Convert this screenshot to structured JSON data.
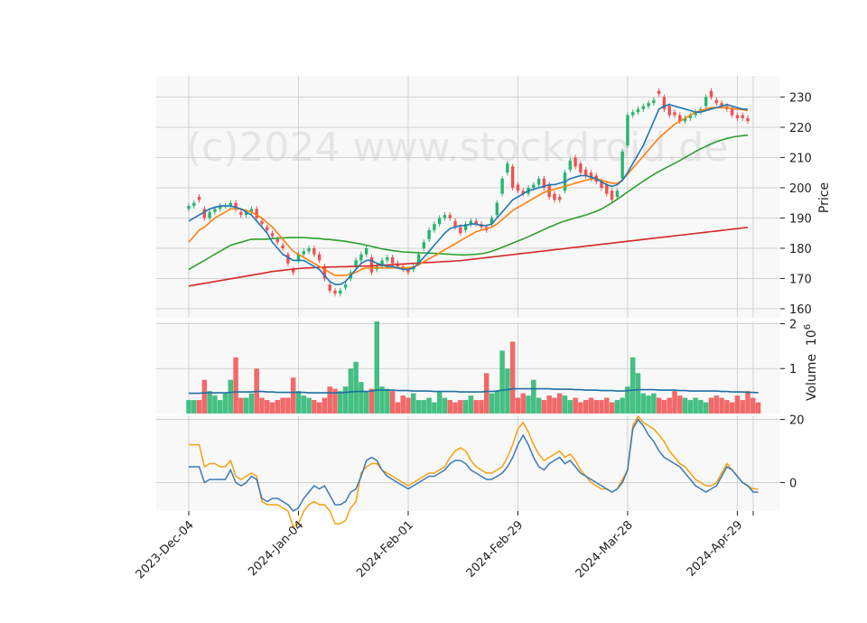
{
  "watermark": "(c)2024 www.stockdroid.de",
  "colors": {
    "up": "#26b56e",
    "down": "#f05050",
    "ma_short": "#1f77b4",
    "ma_mid": "#ff7f0e",
    "ma_long": "#2ca02c",
    "ma_200": "#d62728",
    "volume_avg": "#1f6fa4",
    "osc_fast": "#3a7ab8",
    "osc_slow": "#f5a10e"
  },
  "chart_data": {
    "type": "candlestick",
    "x_tick_labels": [
      "2023-Dec-04",
      "2024-Jan-04",
      "2024-Feb-01",
      "2024-Feb-29",
      "2024-Mar-28",
      "2024-Apr-29"
    ],
    "x_tick_index": [
      0,
      21,
      42,
      63,
      84,
      105
    ],
    "price": {
      "ylabel": "Price",
      "ylim": [
        157,
        237
      ],
      "yticks": [
        160,
        170,
        180,
        190,
        200,
        210,
        220,
        230
      ],
      "close": [
        194,
        195,
        196,
        190,
        192,
        193,
        194,
        194,
        195,
        193,
        191,
        192,
        193,
        190,
        188,
        186,
        184,
        182,
        180,
        175,
        172,
        178,
        179,
        180,
        178,
        176,
        170,
        166,
        165,
        166,
        168,
        172,
        176,
        178,
        180,
        172,
        174,
        176,
        177,
        175,
        174,
        173,
        172,
        174,
        178,
        182,
        186,
        188,
        190,
        191,
        190,
        187,
        185,
        188,
        189,
        188,
        187,
        186,
        190,
        195,
        203,
        208,
        200,
        199,
        198,
        200,
        201,
        203,
        200,
        197,
        196,
        196,
        205,
        209,
        207,
        205,
        204,
        203,
        202,
        200,
        198,
        196,
        199,
        212,
        224,
        225,
        226,
        227,
        228,
        229,
        231,
        226,
        224,
        224,
        222,
        223,
        224,
        225,
        226,
        230,
        230,
        228,
        227,
        226,
        224,
        223,
        223,
        222
      ],
      "open": [
        193,
        194,
        197,
        193,
        190,
        192,
        193,
        194,
        194,
        195,
        192,
        191,
        192,
        193,
        189,
        187,
        185,
        183,
        181,
        178,
        173,
        176,
        178,
        179,
        180,
        178,
        174,
        168,
        166,
        165,
        167,
        170,
        174,
        176,
        178,
        177,
        173,
        174,
        176,
        177,
        175,
        174,
        173,
        173,
        175,
        180,
        183,
        186,
        188,
        190,
        191,
        189,
        187,
        186,
        188,
        189,
        188,
        187,
        188,
        191,
        198,
        205,
        207,
        201,
        199,
        198,
        200,
        201,
        203,
        201,
        198,
        197,
        199,
        206,
        210,
        208,
        206,
        205,
        204,
        202,
        201,
        199,
        197,
        203,
        214,
        224,
        225,
        226,
        227,
        228,
        232,
        230,
        227,
        225,
        224,
        222,
        223,
        224,
        225,
        227,
        232,
        229,
        228,
        227,
        226,
        224,
        224,
        223
      ],
      "ma_short": [
        189,
        190,
        191,
        192,
        193,
        193.5,
        194,
        194,
        194,
        193.5,
        193,
        192,
        191,
        189,
        187,
        185,
        182,
        180,
        178,
        177,
        176,
        176,
        176,
        175,
        174,
        173,
        171,
        169,
        168,
        168,
        169,
        171,
        173,
        175,
        176,
        176,
        175,
        174.5,
        174,
        174,
        173.5,
        173,
        173,
        173.5,
        175,
        177,
        179,
        181,
        183,
        185,
        186.5,
        187,
        187.5,
        187.5,
        188,
        188,
        187.5,
        187.5,
        188,
        190,
        192,
        194,
        196,
        197,
        198,
        199,
        199.5,
        200,
        200.5,
        201,
        201,
        201.5,
        202,
        203,
        203.5,
        204,
        204,
        203.5,
        203,
        202,
        201,
        200.5,
        201,
        202.5,
        205,
        208,
        211,
        214,
        218,
        222,
        226,
        227,
        227.5,
        227,
        226.5,
        226,
        225.5,
        225,
        225,
        225.5,
        226,
        226.5,
        227,
        227.5,
        227,
        226.5,
        226,
        226
      ],
      "ma_mid": [
        182,
        184,
        186,
        187,
        188.5,
        190,
        191,
        192,
        193,
        193,
        193,
        192.5,
        192,
        191,
        190,
        188.5,
        187,
        185,
        183,
        181,
        179,
        178,
        177,
        176,
        175,
        174,
        173,
        172,
        171,
        171,
        171,
        171.5,
        172,
        173,
        173.5,
        173.5,
        173.5,
        173.5,
        173.5,
        173.5,
        173.5,
        173.5,
        173.5,
        173.8,
        174.5,
        175.5,
        176.5,
        177.5,
        178.5,
        179.5,
        180.5,
        181.5,
        182.5,
        183.5,
        184.5,
        185.5,
        186,
        186.5,
        187,
        188,
        189.5,
        191,
        192.5,
        193.5,
        194.5,
        195.5,
        196.5,
        197.5,
        198.5,
        199,
        199.5,
        200,
        200.5,
        201,
        201.5,
        202,
        202.5,
        203,
        203,
        202.5,
        202,
        201.5,
        201.5,
        202.5,
        204.5,
        206.5,
        208.5,
        210.5,
        212.5,
        214.5,
        216.5,
        218,
        219.5,
        221,
        222,
        223,
        224,
        225,
        225.5,
        226,
        226.5,
        226.5,
        226.5,
        226.5,
        226.2,
        226,
        225.8,
        225.5
      ],
      "ma_long": [
        173,
        174,
        175,
        176,
        177,
        178,
        179,
        180,
        181,
        181.5,
        182,
        182.5,
        183,
        183,
        183,
        183,
        183.2,
        183.3,
        183.4,
        183.5,
        183.5,
        183.5,
        183.5,
        183.4,
        183.3,
        183.2,
        183,
        182.9,
        182.7,
        182.5,
        182.3,
        182,
        181.7,
        181.4,
        181,
        180.6,
        180.2,
        179.8,
        179.5,
        179.2,
        179,
        178.8,
        178.7,
        178.6,
        178.5,
        178.5,
        178.4,
        178.3,
        178.2,
        178.1,
        178,
        177.9,
        177.8,
        177.8,
        177.9,
        178,
        178.2,
        178.5,
        179,
        179.6,
        180.3,
        181,
        181.7,
        182.4,
        183.1,
        183.8,
        184.6,
        185.4,
        186.2,
        187,
        187.7,
        188.4,
        189,
        189.5,
        190,
        190.5,
        191,
        191.6,
        192.2,
        193,
        194,
        195,
        196.2,
        197.4,
        198.6,
        199.8,
        201,
        202.2,
        203.3,
        204.4,
        205.4,
        206.3,
        207.2,
        208.1,
        209,
        210,
        211,
        212,
        212.9,
        213.7,
        214.5,
        215.2,
        215.8,
        216.3,
        216.7,
        217,
        217.2,
        217.4
      ],
      "ma_200": [
        167.5,
        167.8,
        168.1,
        168.4,
        168.7,
        169,
        169.3,
        169.6,
        169.9,
        170.2,
        170.5,
        170.8,
        171.1,
        171.4,
        171.7,
        172,
        172.3,
        172.5,
        172.7,
        172.9,
        173.1,
        173.3,
        173.4,
        173.5,
        173.6,
        173.7,
        173.7,
        173.8,
        173.8,
        173.9,
        173.9,
        174,
        174,
        174.1,
        174.1,
        174.2,
        174.3,
        174.4,
        174.5,
        174.6,
        174.7,
        174.8,
        174.9,
        175,
        175.1,
        175.2,
        175.3,
        175.4,
        175.5,
        175.6,
        175.7,
        175.8,
        175.9,
        176.1,
        176.3,
        176.5,
        176.7,
        176.9,
        177.1,
        177.3,
        177.5,
        177.7,
        177.9,
        178.1,
        178.3,
        178.5,
        178.7,
        178.9,
        179.1,
        179.3,
        179.5,
        179.7,
        179.9,
        180.1,
        180.3,
        180.5,
        180.7,
        180.9,
        181.1,
        181.3,
        181.5,
        181.7,
        181.9,
        182.1,
        182.3,
        182.5,
        182.7,
        182.9,
        183.1,
        183.3,
        183.5,
        183.7,
        183.9,
        184.1,
        184.3,
        184.5,
        184.7,
        184.9,
        185.1,
        185.3,
        185.5,
        185.7,
        185.9,
        186.1,
        186.3,
        186.5,
        186.7,
        186.9
      ]
    },
    "volume": {
      "ylabel": "Volume",
      "unit_label": "10^6",
      "ylim": [
        0,
        2.05
      ],
      "yticks": [
        1,
        2
      ],
      "values": [
        0.3,
        0.3,
        0.3,
        0.75,
        0.5,
        0.4,
        0.3,
        0.45,
        0.75,
        1.25,
        0.35,
        0.35,
        0.45,
        1.0,
        0.35,
        0.3,
        0.25,
        0.3,
        0.35,
        0.35,
        0.8,
        0.5,
        0.4,
        0.35,
        0.3,
        0.25,
        0.35,
        0.6,
        0.55,
        0.5,
        0.6,
        1.0,
        1.15,
        0.7,
        0.5,
        0.55,
        2.05,
        0.6,
        0.55,
        0.5,
        0.25,
        0.4,
        0.35,
        0.45,
        0.3,
        0.3,
        0.35,
        0.25,
        0.5,
        0.35,
        0.3,
        0.25,
        0.3,
        0.3,
        0.4,
        0.3,
        0.3,
        0.9,
        0.45,
        0.5,
        1.4,
        1.0,
        1.6,
        0.35,
        0.45,
        0.4,
        0.75,
        0.35,
        0.3,
        0.4,
        0.35,
        0.45,
        0.4,
        0.3,
        0.35,
        0.25,
        0.3,
        0.35,
        0.3,
        0.3,
        0.35,
        0.25,
        0.3,
        0.35,
        0.6,
        1.25,
        0.9,
        0.45,
        0.4,
        0.45,
        0.35,
        0.3,
        0.35,
        0.5,
        0.4,
        0.35,
        0.3,
        0.35,
        0.3,
        0.25,
        0.35,
        0.4,
        0.35,
        0.3,
        0.25,
        0.4,
        0.3,
        0.5,
        0.35,
        0.25
      ],
      "avg": [
        0.45,
        0.45,
        0.45,
        0.46,
        0.46,
        0.46,
        0.46,
        0.46,
        0.47,
        0.48,
        0.48,
        0.48,
        0.48,
        0.49,
        0.49,
        0.48,
        0.48,
        0.47,
        0.47,
        0.47,
        0.47,
        0.47,
        0.47,
        0.46,
        0.46,
        0.46,
        0.46,
        0.46,
        0.46,
        0.46,
        0.47,
        0.48,
        0.49,
        0.49,
        0.49,
        0.5,
        0.52,
        0.52,
        0.52,
        0.52,
        0.51,
        0.51,
        0.51,
        0.5,
        0.5,
        0.5,
        0.5,
        0.49,
        0.49,
        0.49,
        0.49,
        0.49,
        0.48,
        0.48,
        0.48,
        0.48,
        0.48,
        0.49,
        0.49,
        0.5,
        0.52,
        0.53,
        0.55,
        0.55,
        0.55,
        0.55,
        0.55,
        0.55,
        0.55,
        0.55,
        0.54,
        0.54,
        0.54,
        0.54,
        0.53,
        0.53,
        0.52,
        0.52,
        0.52,
        0.51,
        0.51,
        0.51,
        0.5,
        0.5,
        0.51,
        0.52,
        0.53,
        0.53,
        0.53,
        0.53,
        0.52,
        0.52,
        0.52,
        0.52,
        0.51,
        0.51,
        0.5,
        0.5,
        0.5,
        0.5,
        0.5,
        0.5,
        0.49,
        0.49,
        0.48,
        0.48,
        0.48,
        0.47,
        0.47,
        0.46
      ]
    },
    "oscillator": {
      "ylim": [
        -9,
        21
      ],
      "yticks": [
        0,
        20
      ],
      "fast": [
        5,
        5,
        5,
        0,
        1,
        1,
        1,
        1,
        4,
        0,
        -1,
        0,
        2,
        1,
        -5,
        -6,
        -5,
        -5,
        -6,
        -7,
        -9,
        -8,
        -5,
        -3,
        -1,
        -2,
        -1,
        -4,
        -7,
        -7,
        -6,
        -3,
        -2,
        2,
        7,
        8,
        7,
        4,
        2,
        1,
        0,
        -1,
        -2,
        -1,
        0,
        1,
        2,
        2,
        3,
        4,
        6,
        7,
        7,
        6,
        4,
        3,
        2,
        1,
        1,
        2,
        3,
        5,
        8,
        12,
        15,
        12,
        8,
        5,
        4,
        6,
        7,
        8,
        6,
        7,
        5,
        3,
        2,
        1,
        0,
        -1,
        -2,
        -3,
        -2,
        0,
        4,
        17,
        20,
        18,
        15,
        13,
        10,
        8,
        7,
        6,
        5,
        3,
        1,
        -1,
        -2,
        -3,
        -2,
        -1,
        2,
        5,
        4,
        2,
        0,
        -1,
        -3,
        -3
      ],
      "slow": [
        12,
        12,
        12,
        5,
        6,
        6,
        5,
        5,
        7,
        2,
        1,
        2,
        3,
        2,
        -6,
        -7,
        -7,
        -7,
        -8,
        -9,
        -14,
        -13,
        -9,
        -7,
        -6,
        -7,
        -7,
        -9,
        -13,
        -13,
        -12,
        -8,
        -6,
        3,
        5,
        6,
        6,
        4,
        3,
        2,
        1,
        0,
        -1,
        0,
        1,
        2,
        3,
        3,
        4,
        5,
        8,
        10,
        11,
        10,
        7,
        5,
        4,
        3,
        3,
        4,
        5,
        8,
        12,
        17,
        19,
        16,
        12,
        9,
        7,
        8,
        9,
        10,
        8,
        9,
        7,
        4,
        2,
        0,
        -1,
        -2,
        -2,
        -3,
        -2,
        1,
        4,
        18,
        21,
        19,
        18,
        17,
        15,
        13,
        10,
        8,
        6,
        5,
        3,
        1,
        0,
        -1,
        -1,
        0,
        3,
        6,
        4,
        2,
        0,
        -1,
        -2,
        -2
      ]
    }
  }
}
